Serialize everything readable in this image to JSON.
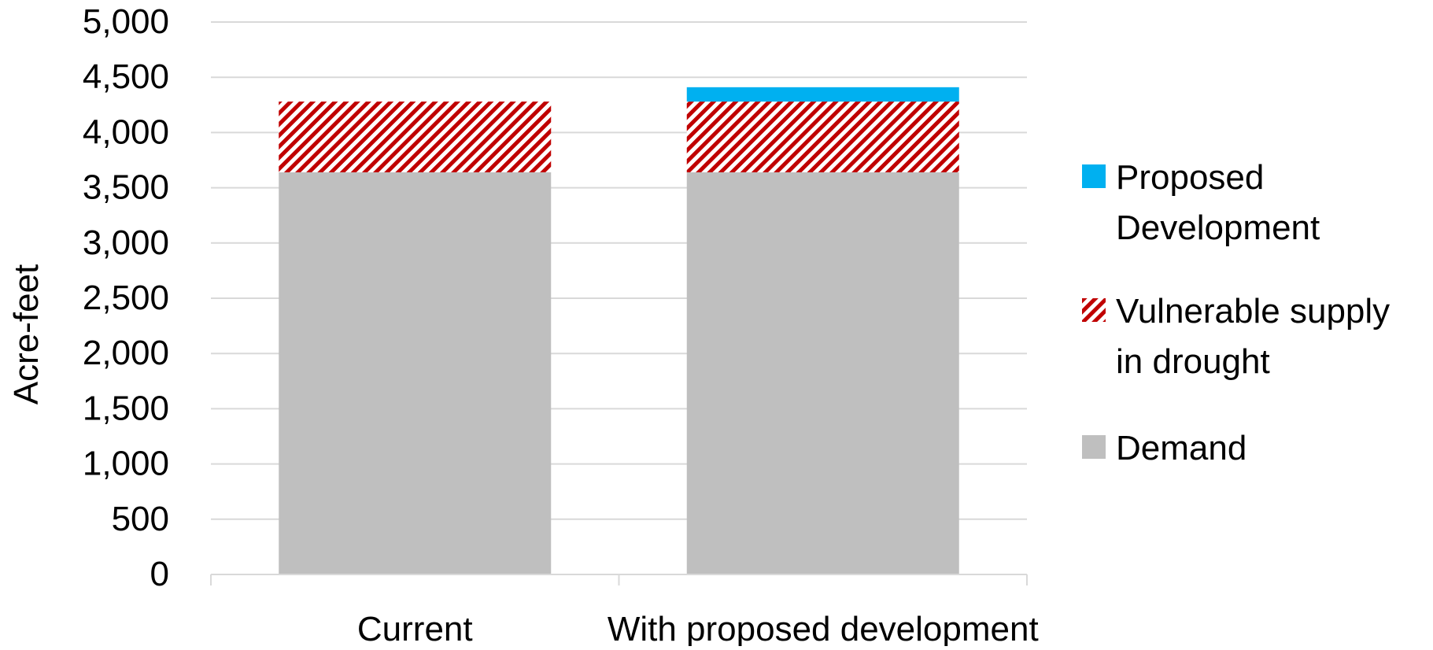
{
  "chart_data": {
    "type": "bar",
    "stacked": true,
    "title": "",
    "xlabel": "",
    "ylabel": "Acre-feet",
    "ylim": [
      0,
      5000
    ],
    "yticks": [
      0,
      500,
      1000,
      1500,
      2000,
      2500,
      3000,
      3500,
      4000,
      4500,
      5000
    ],
    "ytick_labels": [
      "0",
      "500",
      "1,000",
      "1,500",
      "2,000",
      "2,500",
      "3,000",
      "3,500",
      "4,000",
      "4,500",
      "5,000"
    ],
    "grid": true,
    "legend_position": "right",
    "categories": [
      "Current",
      "With proposed development"
    ],
    "series": [
      {
        "name": "Demand",
        "values": [
          3640,
          3640
        ],
        "color": "#BFBFBF",
        "pattern": "solid"
      },
      {
        "name": "Vulnerable supply in drought",
        "values": [
          640,
          640
        ],
        "color": "#C00000",
        "pattern": "diagonal-hatch"
      },
      {
        "name": "Proposed Development",
        "values": [
          0,
          130
        ],
        "color": "#00B0F0",
        "pattern": "solid"
      }
    ],
    "legend": [
      {
        "series": "Proposed Development",
        "lines": [
          "Proposed",
          "Development"
        ]
      },
      {
        "series": "Vulnerable supply in drought",
        "lines": [
          "Vulnerable supply",
          "in drought"
        ]
      },
      {
        "series": "Demand",
        "lines": [
          "Demand"
        ]
      }
    ]
  }
}
